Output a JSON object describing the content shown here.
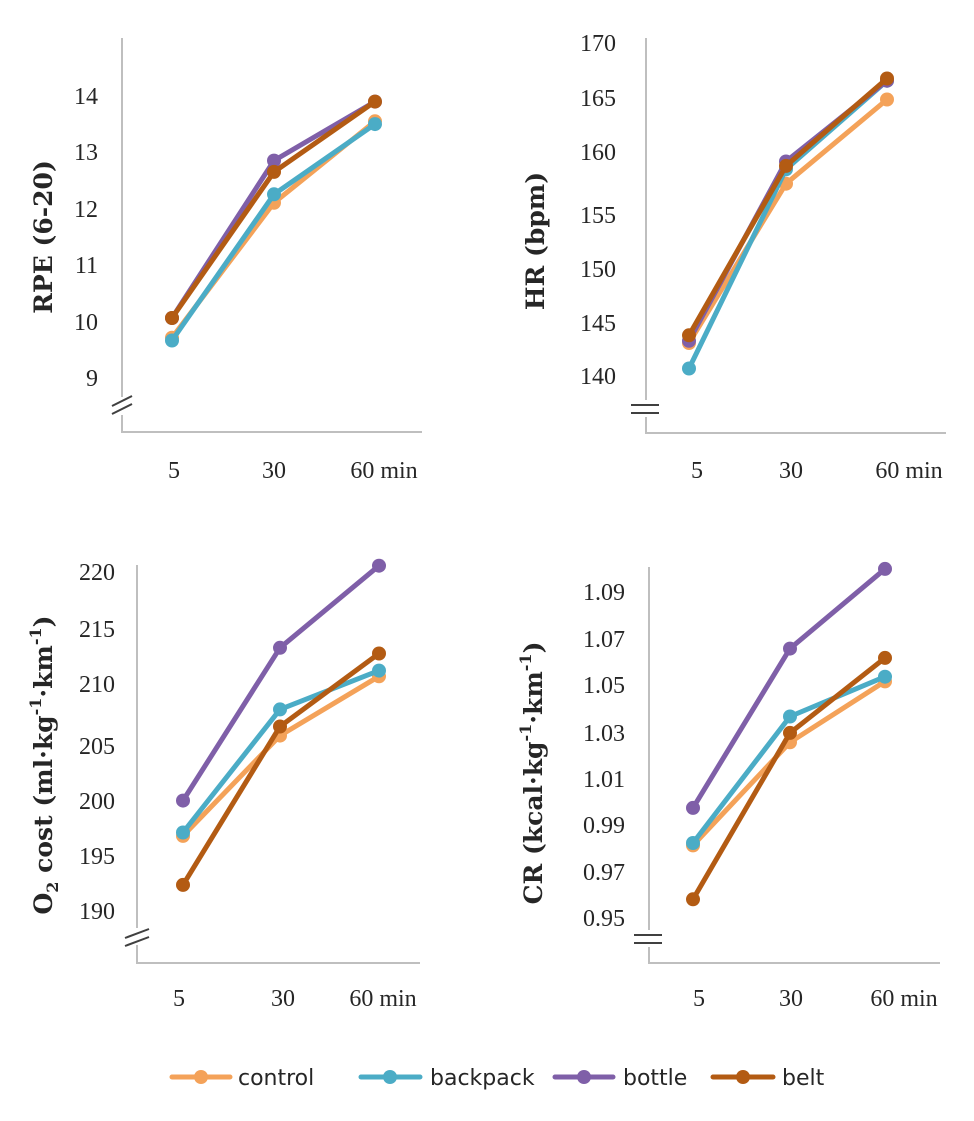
{
  "colors": {
    "control": "#F4A259",
    "backpack": "#4BACC6",
    "bottle": "#7F5FA8",
    "belt": "#B35B13"
  },
  "legend": [
    {
      "key": "control",
      "label": "control"
    },
    {
      "key": "backpack",
      "label": "backpack"
    },
    {
      "key": "bottle",
      "label": "bottle"
    },
    {
      "key": "belt",
      "label": "belt"
    }
  ],
  "chart_data": [
    {
      "id": "rpe",
      "type": "line",
      "ylabel": "RPE (6-20)",
      "categories": [
        "5",
        "30",
        "60 min"
      ],
      "ylim": [
        8.5,
        15
      ],
      "yticks": [
        "9",
        "10",
        "11",
        "12",
        "13",
        "14"
      ],
      "series": [
        {
          "name": "control",
          "values": [
            9.7,
            12.1,
            13.55
          ]
        },
        {
          "name": "backpack",
          "values": [
            9.65,
            12.25,
            13.5
          ]
        },
        {
          "name": "bottle",
          "values": [
            10.05,
            12.85,
            13.9
          ]
        },
        {
          "name": "belt",
          "values": [
            10.05,
            12.65,
            13.9
          ]
        }
      ]
    },
    {
      "id": "hr",
      "type": "line",
      "ylabel": "HR (bpm)",
      "categories": [
        "5",
        "30",
        "60 min"
      ],
      "ylim": [
        138,
        170
      ],
      "yticks": [
        "140",
        "145",
        "150",
        "155",
        "160",
        "165",
        "170"
      ],
      "series": [
        {
          "name": "control",
          "values": [
            142.8,
            157.2,
            164.8
          ]
        },
        {
          "name": "backpack",
          "values": [
            140.5,
            158.5,
            166.5
          ]
        },
        {
          "name": "bottle",
          "values": [
            143.0,
            159.2,
            166.5
          ]
        },
        {
          "name": "belt",
          "values": [
            143.5,
            158.8,
            166.7
          ]
        }
      ]
    },
    {
      "id": "o2",
      "type": "line",
      "ylabel_main": "O",
      "ylabel_sub": "2",
      "ylabel_rest": " cost (ml·kg",
      "ylabel_sup1": "-1",
      "ylabel_mid": "·km",
      "ylabel_sup2": "-1",
      "ylabel_end": ")",
      "categories": [
        "5",
        "30",
        "60 min"
      ],
      "ylim": [
        188,
        221
      ],
      "yticks": [
        "190",
        "195",
        "200",
        "205",
        "210",
        "215",
        "220"
      ],
      "series": [
        {
          "name": "control",
          "values": [
            196.5,
            205.3,
            210.5
          ]
        },
        {
          "name": "backpack",
          "values": [
            196.8,
            207.6,
            211.0
          ]
        },
        {
          "name": "bottle",
          "values": [
            199.6,
            213.0,
            220.2
          ]
        },
        {
          "name": "belt",
          "values": [
            192.2,
            206.1,
            212.5
          ]
        }
      ]
    },
    {
      "id": "cr",
      "type": "line",
      "ylabel_main": "CR (kcal·kg",
      "ylabel_sup1": "-1",
      "ylabel_mid": "·km",
      "ylabel_sup2": "-1",
      "ylabel_end": ")",
      "categories": [
        "5",
        "30",
        "60 min"
      ],
      "ylim": [
        0.94,
        1.1
      ],
      "yticks": [
        "0.95",
        "0.97",
        "0.99",
        "1.01",
        "1.03",
        "1.05",
        "1.07",
        "1.09"
      ],
      "series": [
        {
          "name": "control",
          "values": [
            0.981,
            1.025,
            1.051
          ]
        },
        {
          "name": "backpack",
          "values": [
            0.982,
            1.036,
            1.053
          ]
        },
        {
          "name": "bottle",
          "values": [
            0.997,
            1.065,
            1.099
          ]
        },
        {
          "name": "belt",
          "values": [
            0.958,
            1.029,
            1.061
          ]
        }
      ]
    }
  ]
}
